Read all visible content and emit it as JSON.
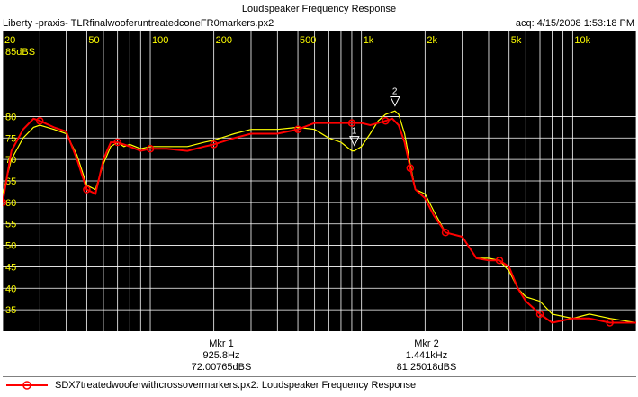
{
  "window": {
    "title": "Loudspeaker Frequency Response",
    "subtitle_left": "Liberty -praxis-  TLRfinalwooferuntreatedconeFR0markers.px2",
    "subtitle_right": "acq: 4/15/2008 1:53:18 PM"
  },
  "chart_data": {
    "type": "line",
    "title": "Loudspeaker Frequency Response",
    "x_scale": "log",
    "xlim": [
      20,
      20000
    ],
    "ylim": [
      30,
      100
    ],
    "y_unit_label": "85dBS",
    "x_ticks": [
      {
        "value": 20,
        "label": "20"
      },
      {
        "value": 50,
        "label": "50"
      },
      {
        "value": 100,
        "label": "100"
      },
      {
        "value": 200,
        "label": "200"
      },
      {
        "value": 500,
        "label": "500"
      },
      {
        "value": 1000,
        "label": "1k"
      },
      {
        "value": 2000,
        "label": "2k"
      },
      {
        "value": 5000,
        "label": "5k"
      },
      {
        "value": 10000,
        "label": "10k"
      }
    ],
    "y_ticks": [
      {
        "value": 80,
        "label": "80"
      },
      {
        "value": 75,
        "label": "75"
      },
      {
        "value": 70,
        "label": "70"
      },
      {
        "value": 65,
        "label": "65"
      },
      {
        "value": 60,
        "label": "60"
      },
      {
        "value": 55,
        "label": "55"
      },
      {
        "value": 50,
        "label": "50"
      },
      {
        "value": 45,
        "label": "45"
      },
      {
        "value": 40,
        "label": "40"
      },
      {
        "value": 35,
        "label": "35"
      }
    ],
    "grid": true,
    "background": "#000000",
    "gridcolor": "#ffffff",
    "tick_label_color": "#ffff00",
    "series": [
      {
        "name": "SDX7treatedwooferwithcrossovermarkers.px2:  Loudspeaker Frequency Response",
        "color": "#ff0000",
        "markers": true,
        "x": [
          20,
          22,
          25,
          28,
          30,
          35,
          40,
          45,
          50,
          55,
          60,
          65,
          70,
          75,
          80,
          90,
          100,
          120,
          150,
          180,
          200,
          250,
          300,
          400,
          500,
          600,
          700,
          800,
          900,
          1000,
          1100,
          1200,
          1300,
          1400,
          1500,
          1600,
          1700,
          1800,
          2000,
          2200,
          2500,
          3000,
          3500,
          4000,
          4500,
          5000,
          5500,
          6000,
          7000,
          8000,
          10000,
          12000,
          15000,
          20000
        ],
        "y": [
          60,
          72,
          77,
          79.5,
          79,
          77.5,
          76.5,
          70,
          63,
          62,
          70,
          74,
          74,
          73.5,
          73,
          72,
          72.5,
          72.5,
          72,
          73,
          73.5,
          75,
          76,
          76,
          77,
          78.5,
          78.5,
          78.5,
          78.5,
          78.5,
          78,
          78.5,
          79,
          79.5,
          78,
          74,
          68,
          63,
          61,
          57,
          53,
          52,
          47,
          46.5,
          46.5,
          45,
          40,
          37,
          34,
          32,
          33,
          33,
          32,
          32
        ]
      },
      {
        "name": "",
        "color": "#ffff00",
        "markers": false,
        "x": [
          20,
          22,
          25,
          28,
          30,
          35,
          40,
          45,
          50,
          55,
          60,
          65,
          70,
          75,
          80,
          90,
          100,
          120,
          150,
          180,
          200,
          250,
          300,
          400,
          500,
          600,
          700,
          800,
          900,
          925.8,
          1000,
          1100,
          1200,
          1300,
          1441,
          1500,
          1600,
          1700,
          1800,
          2000,
          2200,
          2500,
          3000,
          3500,
          4000,
          4500,
          5000,
          5500,
          6000,
          7000,
          8000,
          10000,
          12000,
          15000,
          20000
        ],
        "y": [
          62,
          70,
          75,
          77.5,
          78,
          77,
          76,
          71,
          64,
          63,
          69,
          73,
          74,
          73,
          73.5,
          72.5,
          73,
          73,
          73,
          74,
          74.5,
          76,
          77,
          77,
          77.5,
          77,
          75,
          74,
          72,
          72,
          73,
          76,
          79,
          80.5,
          81.3,
          80.5,
          76,
          69,
          63,
          62,
          58,
          53,
          52,
          47,
          47,
          46.5,
          44,
          40,
          38,
          37,
          34,
          33,
          34,
          33,
          32
        ]
      }
    ],
    "marker_annotations": [
      {
        "id": "1",
        "x": 925.8,
        "y": 72.00765
      },
      {
        "id": "2",
        "x": 1441,
        "y": 81.25018
      }
    ]
  },
  "markers": [
    {
      "label": "Mkr 1",
      "freq": "925.8Hz",
      "level": "72.00765dBS"
    },
    {
      "label": "Mkr 2",
      "freq": "1.441kHz",
      "level": "81.25018dBS"
    }
  ],
  "legend": {
    "label": "SDX7treatedwooferwithcrossovermarkers.px2:  Loudspeaker Frequency Response",
    "color": "#ff0000"
  }
}
